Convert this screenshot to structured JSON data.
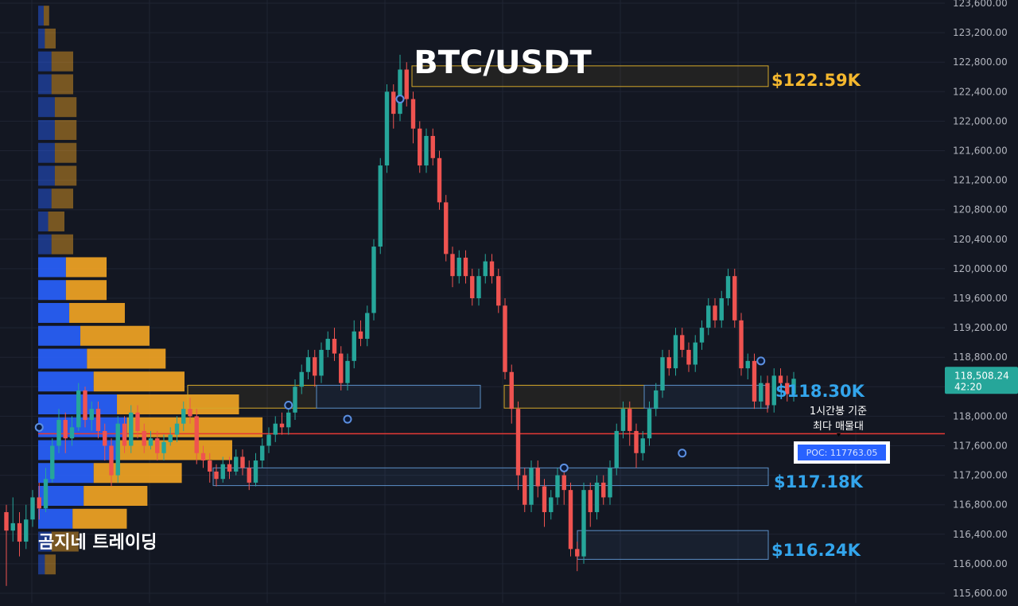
{
  "header": {
    "title": "BTC/USDT",
    "watermark": "곰지네 트레이딩"
  },
  "colors": {
    "background": "#131722",
    "grid": "#1f2433",
    "axis_text": "#b2b5be",
    "up": "#26a69a",
    "down": "#ef5350",
    "vp_buy": "#2962ff",
    "vp_sell": "#f5a623",
    "zone_gold": "#d4a82a",
    "zone_blue": "#5b8fc7",
    "poc_line": "#e53935",
    "label_gold": "#f5b82e",
    "label_blue": "#33a5ec",
    "price_badge": "#26a69a",
    "poc_badge": "#2962ff"
  },
  "chart_data": {
    "type": "candlestick",
    "timeframe_note": "1시간봉",
    "y_ticks": [
      "123,600.00",
      "123,200.00",
      "122,800.00",
      "122,400.00",
      "122,000.00",
      "121,600.00",
      "121,200.00",
      "120,800.00",
      "120,400.00",
      "120,000.00",
      "119,600.00",
      "119,200.00",
      "118,800.00",
      "118,400.00",
      "118,000.00",
      "117,600.00",
      "117,200.00",
      "116,800.00",
      "116,400.00",
      "116,000.00",
      "115,600.00"
    ],
    "ylim": [
      115600,
      123600
    ],
    "current_price": {
      "price": 118508.24,
      "label": "118,508.24",
      "countdown": "42:20"
    },
    "poc": {
      "price": 117763.05,
      "label": "POC: 117763.05",
      "note_line1": "1시간봉 기준",
      "note_line2": "최다 매물대"
    },
    "zones": [
      {
        "name": "zone-122k",
        "top": 122750,
        "bottom": 122470,
        "kind": "gold",
        "label": "$122.59K",
        "label_color": "gold"
      },
      {
        "name": "zone-118k",
        "top": 118420,
        "bottom": 118110,
        "kind": "mixed",
        "label": "$118.30K",
        "label_color": "blue"
      },
      {
        "name": "zone-117k",
        "top": 117300,
        "bottom": 117060,
        "kind": "blue",
        "label": "$117.18K",
        "label_color": "blue"
      },
      {
        "name": "zone-116k",
        "top": 116450,
        "bottom": 116060,
        "kind": "blue",
        "label": "$116.24K",
        "label_color": "blue"
      }
    ],
    "volume_profile": [
      {
        "price": 123420,
        "buy": 0.05,
        "sell": 0.04
      },
      {
        "price": 123110,
        "buy": 0.06,
        "sell": 0.08
      },
      {
        "price": 122800,
        "buy": 0.12,
        "sell": 0.16
      },
      {
        "price": 122490,
        "buy": 0.12,
        "sell": 0.16
      },
      {
        "price": 122180,
        "buy": 0.15,
        "sell": 0.16
      },
      {
        "price": 121870,
        "buy": 0.15,
        "sell": 0.16
      },
      {
        "price": 121560,
        "buy": 0.15,
        "sell": 0.16
      },
      {
        "price": 121250,
        "buy": 0.15,
        "sell": 0.16
      },
      {
        "price": 120940,
        "buy": 0.12,
        "sell": 0.16
      },
      {
        "price": 120630,
        "buy": 0.09,
        "sell": 0.12
      },
      {
        "price": 120320,
        "buy": 0.12,
        "sell": 0.16
      },
      {
        "price": 120010,
        "buy": 0.25,
        "sell": 0.3
      },
      {
        "price": 119700,
        "buy": 0.25,
        "sell": 0.3
      },
      {
        "price": 119390,
        "buy": 0.28,
        "sell": 0.41
      },
      {
        "price": 119080,
        "buy": 0.38,
        "sell": 0.51
      },
      {
        "price": 118770,
        "buy": 0.44,
        "sell": 0.58
      },
      {
        "price": 118460,
        "buy": 0.5,
        "sell": 0.67
      },
      {
        "price": 118150,
        "buy": 0.71,
        "sell": 0.9
      },
      {
        "price": 117840,
        "buy": 0.8,
        "sell": 1.0
      },
      {
        "price": 117530,
        "buy": 0.71,
        "sell": 0.85
      },
      {
        "price": 117220,
        "buy": 0.5,
        "sell": 0.65
      },
      {
        "price": 116910,
        "buy": 0.41,
        "sell": 0.47
      },
      {
        "price": 116600,
        "buy": 0.31,
        "sell": 0.4
      },
      {
        "price": 116290,
        "buy": 0.12,
        "sell": 0.2
      },
      {
        "price": 115980,
        "buy": 0.06,
        "sell": 0.08
      }
    ],
    "candles": [
      [
        116700,
        116450,
        116800,
        115700
      ],
      [
        116450,
        116550,
        116900,
        116300
      ],
      [
        116550,
        116300,
        116700,
        116100
      ],
      [
        116300,
        116600,
        116800,
        116200
      ],
      [
        116600,
        116900,
        117000,
        116500
      ],
      [
        116900,
        116750,
        117100,
        116600
      ],
      [
        116750,
        117150,
        117300,
        116700
      ],
      [
        117150,
        117600,
        117700,
        117100
      ],
      [
        117600,
        117950,
        118100,
        117500
      ],
      [
        117950,
        117700,
        118050,
        117500
      ],
      [
        117700,
        117850,
        118000,
        117600
      ],
      [
        117850,
        118350,
        118450,
        117800
      ],
      [
        118350,
        117950,
        118400,
        117850
      ],
      [
        117950,
        118100,
        118200,
        117800
      ],
      [
        118100,
        117800,
        118200,
        117700
      ],
      [
        117800,
        117600,
        117900,
        117400
      ],
      [
        117600,
        117200,
        117700,
        117050
      ],
      [
        117200,
        117900,
        118000,
        117100
      ],
      [
        117900,
        117600,
        118000,
        117500
      ],
      [
        117600,
        118050,
        118150,
        117500
      ],
      [
        118050,
        117800,
        118150,
        117700
      ],
      [
        117800,
        117600,
        117900,
        117500
      ],
      [
        117600,
        117700,
        117800,
        117550
      ],
      [
        117700,
        117500,
        117800,
        117400
      ],
      [
        117500,
        117650,
        117750,
        117400
      ],
      [
        117650,
        117750,
        117850,
        117600
      ],
      [
        117750,
        117900,
        118000,
        117650
      ],
      [
        117900,
        118100,
        118200,
        117800
      ],
      [
        118100,
        118000,
        118250,
        117900
      ],
      [
        118000,
        117500,
        118100,
        117350
      ],
      [
        117500,
        117400,
        117600,
        117300
      ],
      [
        117400,
        117250,
        117500,
        117100
      ],
      [
        117250,
        117150,
        117350,
        117050
      ],
      [
        117150,
        117350,
        117450,
        117100
      ],
      [
        117350,
        117250,
        117450,
        117150
      ],
      [
        117250,
        117450,
        117550,
        117200
      ],
      [
        117450,
        117300,
        117550,
        117200
      ],
      [
        117300,
        117100,
        117400,
        117000
      ],
      [
        117100,
        117400,
        117500,
        117050
      ],
      [
        117400,
        117600,
        117700,
        117300
      ],
      [
        117600,
        117750,
        117850,
        117500
      ],
      [
        117750,
        117900,
        118000,
        117650
      ],
      [
        117900,
        117850,
        118050,
        117750
      ],
      [
        117850,
        118050,
        118150,
        117750
      ],
      [
        118050,
        118400,
        118500,
        117950
      ],
      [
        118400,
        118600,
        118700,
        118300
      ],
      [
        118600,
        118800,
        118900,
        118500
      ],
      [
        118800,
        118550,
        118900,
        118400
      ],
      [
        118550,
        118900,
        119000,
        118450
      ],
      [
        118900,
        119050,
        119150,
        118800
      ],
      [
        119050,
        118850,
        119200,
        118750
      ],
      [
        118850,
        118450,
        118950,
        118350
      ],
      [
        118450,
        118750,
        118850,
        118350
      ],
      [
        118750,
        119150,
        119300,
        118650
      ],
      [
        119150,
        119050,
        119300,
        118950
      ],
      [
        119050,
        119400,
        119500,
        118950
      ],
      [
        119400,
        120300,
        120400,
        119300
      ],
      [
        120300,
        121400,
        121500,
        120200
      ],
      [
        121400,
        122400,
        122500,
        121300
      ],
      [
        122400,
        122100,
        122500,
        121900
      ],
      [
        122100,
        122700,
        122900,
        122000
      ],
      [
        122700,
        122300,
        122800,
        122200
      ],
      [
        122300,
        121900,
        122400,
        121700
      ],
      [
        121900,
        121400,
        122000,
        121300
      ],
      [
        121400,
        121800,
        121900,
        121300
      ],
      [
        121800,
        121500,
        121900,
        121400
      ],
      [
        121500,
        120900,
        121600,
        120800
      ],
      [
        120900,
        120200,
        121000,
        120100
      ],
      [
        120200,
        119900,
        120300,
        119750
      ],
      [
        119900,
        120150,
        120250,
        119800
      ],
      [
        120150,
        119900,
        120250,
        119800
      ],
      [
        119900,
        119600,
        120000,
        119500
      ],
      [
        119600,
        119900,
        120000,
        119500
      ],
      [
        119900,
        120100,
        120200,
        119800
      ],
      [
        120100,
        119900,
        120200,
        119800
      ],
      [
        119900,
        119500,
        120000,
        119400
      ],
      [
        119500,
        118600,
        119600,
        118500
      ],
      [
        118600,
        118100,
        118700,
        117900
      ],
      [
        118100,
        117200,
        118200,
        117000
      ],
      [
        117200,
        116800,
        117300,
        116700
      ],
      [
        116800,
        117300,
        117400,
        116700
      ],
      [
        117300,
        117050,
        117400,
        116900
      ],
      [
        117050,
        116700,
        117150,
        116500
      ],
      [
        116700,
        116900,
        117000,
        116600
      ],
      [
        116900,
        117200,
        117300,
        116800
      ],
      [
        117200,
        117000,
        117300,
        116800
      ],
      [
        117000,
        116200,
        117100,
        116100
      ],
      [
        116200,
        116100,
        116300,
        115900
      ],
      [
        116100,
        117000,
        117100,
        116000
      ],
      [
        117000,
        116700,
        117100,
        116500
      ],
      [
        116700,
        117100,
        117200,
        116600
      ],
      [
        117100,
        116900,
        117200,
        116800
      ],
      [
        116900,
        117300,
        117400,
        116800
      ],
      [
        117300,
        117800,
        117900,
        117200
      ],
      [
        117800,
        118100,
        118200,
        117700
      ],
      [
        118100,
        117800,
        118200,
        117600
      ],
      [
        117800,
        117500,
        117900,
        117300
      ],
      [
        117500,
        117700,
        117800,
        117400
      ],
      [
        117700,
        118100,
        118200,
        117600
      ],
      [
        118100,
        118350,
        118450,
        118000
      ],
      [
        118350,
        118800,
        118900,
        118250
      ],
      [
        118800,
        118650,
        118900,
        118550
      ],
      [
        118650,
        119100,
        119200,
        118550
      ],
      [
        119100,
        118900,
        119200,
        118800
      ],
      [
        118900,
        118700,
        119000,
        118600
      ],
      [
        118700,
        119000,
        119100,
        118600
      ],
      [
        119000,
        119200,
        119300,
        118900
      ],
      [
        119200,
        119500,
        119600,
        119100
      ],
      [
        119500,
        119300,
        119600,
        119200
      ],
      [
        119300,
        119600,
        119700,
        119200
      ],
      [
        119600,
        119900,
        120000,
        119500
      ],
      [
        119900,
        119300,
        120000,
        119200
      ],
      [
        119300,
        118650,
        119400,
        118550
      ],
      [
        118650,
        118750,
        118850,
        118500
      ],
      [
        118750,
        118200,
        118850,
        118100
      ],
      [
        118200,
        118450,
        118550,
        118100
      ],
      [
        118450,
        118150,
        118550,
        118050
      ],
      [
        118150,
        118550,
        118650,
        118050
      ],
      [
        118550,
        118450,
        118650,
        118350
      ],
      [
        118450,
        118300,
        118550,
        118200
      ],
      [
        118300,
        118508,
        118600,
        118200
      ]
    ],
    "markers": [
      {
        "index": 5,
        "price": 117850
      },
      {
        "index": 43,
        "price": 118150
      },
      {
        "index": 52,
        "price": 117960
      },
      {
        "index": 60,
        "price": 122300
      },
      {
        "index": 85,
        "price": 117300
      },
      {
        "index": 103,
        "price": 117500
      },
      {
        "index": 115,
        "price": 118750
      }
    ]
  }
}
